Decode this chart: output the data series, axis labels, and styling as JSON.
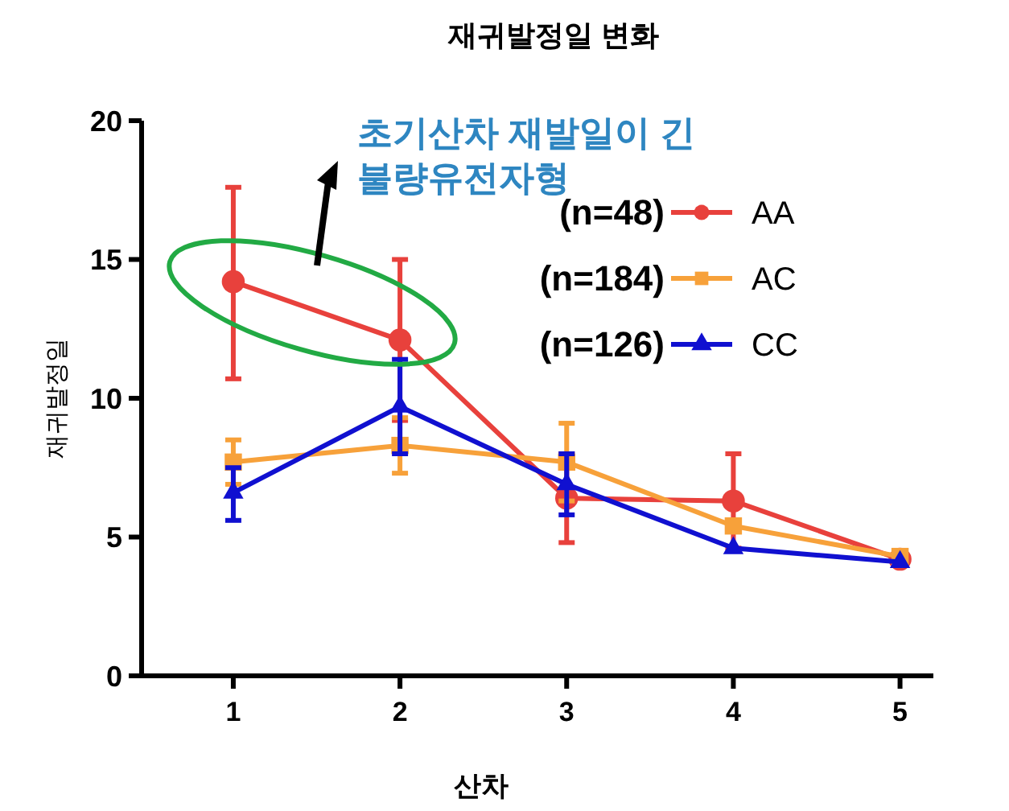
{
  "chart_data": {
    "type": "line",
    "title": "재귀발정일 변화",
    "xlabel": "산차",
    "ylabel": "재귀발정일",
    "x": [
      1,
      2,
      3,
      4,
      5
    ],
    "xlim": [
      0.45,
      5.2
    ],
    "xticks": [
      1,
      2,
      3,
      4,
      5
    ],
    "ylim": [
      0,
      20
    ],
    "yticks": [
      0,
      5,
      10,
      15,
      20
    ],
    "series": [
      {
        "name": "AA",
        "color": "#e8413c",
        "marker": "circle",
        "values": [
          14.2,
          12.1,
          6.4,
          6.3,
          4.2
        ],
        "errors": [
          [
            10.7,
            17.6
          ],
          [
            9.2,
            15.0
          ],
          [
            4.8,
            8.0
          ],
          [
            4.6,
            8.0
          ],
          null
        ]
      },
      {
        "name": "AC",
        "color": "#f7a13a",
        "marker": "square",
        "values": [
          7.7,
          8.3,
          7.7,
          5.4,
          4.3
        ],
        "errors": [
          [
            6.9,
            8.5
          ],
          [
            7.3,
            9.3
          ],
          [
            6.3,
            9.1
          ],
          null,
          null
        ]
      },
      {
        "name": "CC",
        "color": "#1010d0",
        "marker": "triangle",
        "values": [
          6.6,
          9.7,
          6.9,
          4.6,
          4.1
        ],
        "errors": [
          [
            5.6,
            7.5
          ],
          [
            8.0,
            11.4
          ],
          [
            5.8,
            8.0
          ],
          null,
          null
        ]
      }
    ],
    "annotations": [
      "초기산차 재발일이 긴\n불량유전자형",
      "(n=48)",
      "(n=184)",
      "(n=126)"
    ],
    "legend": "top right",
    "grid": false,
    "line_style": "solid"
  }
}
